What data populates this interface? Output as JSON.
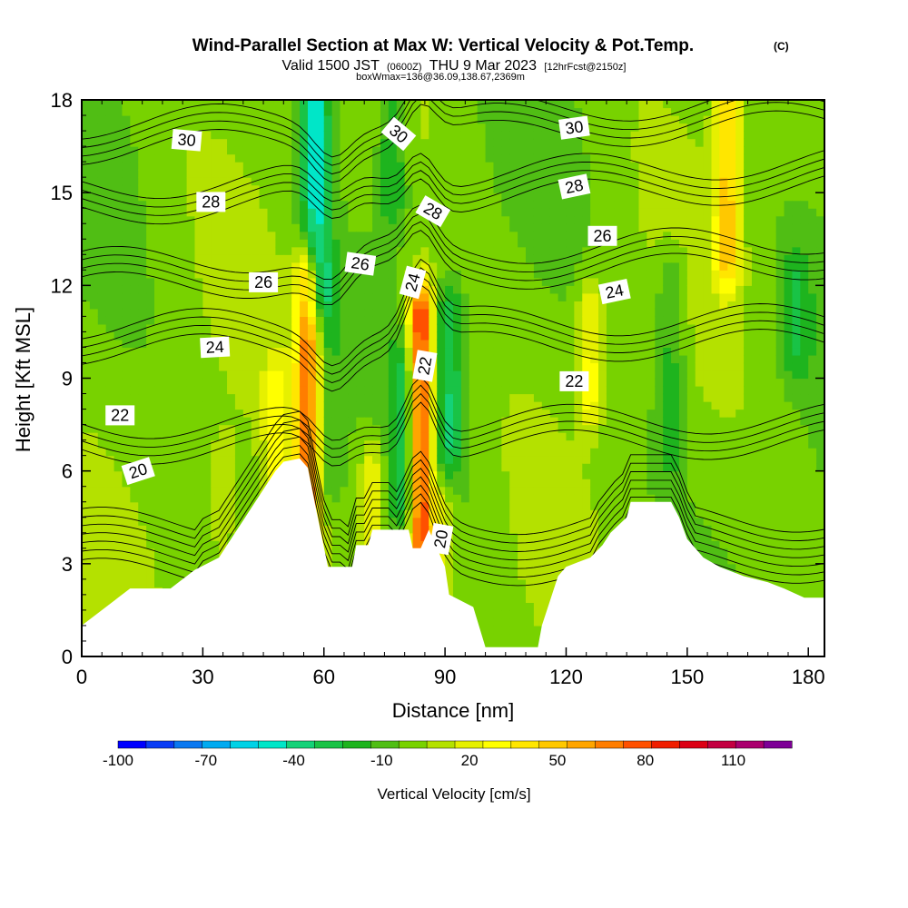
{
  "title": {
    "main": "Wind-Parallel Section at Max W: Vertical Velocity & Pot.Temp.",
    "copyright": "(C)",
    "valid_prefix": "Valid 1500 JST",
    "valid_utc": "(0600Z)",
    "valid_date": "THU 9 Mar 2023",
    "forecast": "[12hrFcst@2150z]",
    "box_info": "boxWmax=136@36.09,138.67,2369m"
  },
  "chart_data": {
    "type": "heatmap",
    "xlabel": "Distance [nm]",
    "ylabel": "Height [Kft MSL]",
    "xlim": [
      0,
      184
    ],
    "ylim": [
      0,
      18
    ],
    "x_ticks": [
      0,
      30,
      60,
      90,
      120,
      150,
      180
    ],
    "y_ticks": [
      0,
      3,
      6,
      9,
      12,
      15,
      18
    ],
    "colorbar": {
      "label": "Vertical Velocity [cm/s]",
      "tick_labels": [
        "-100",
        "-70",
        "-40",
        "-10",
        "20",
        "50",
        "80",
        "110"
      ],
      "tick_values": [
        -100,
        -70,
        -40,
        -10,
        20,
        50,
        80,
        110
      ],
      "range": [
        -100,
        130
      ],
      "colors": [
        "#0000ff",
        "#0a3cf5",
        "#0a78f0",
        "#00aaf0",
        "#00d2e6",
        "#00e6c8",
        "#14d278",
        "#19c346",
        "#1eb41e",
        "#50be14",
        "#78d200",
        "#b4e100",
        "#e6f000",
        "#ffff00",
        "#ffe600",
        "#ffc800",
        "#ffa500",
        "#ff7d00",
        "#ff5000",
        "#f01e00",
        "#dc0014",
        "#c30041",
        "#aa006e",
        "#7d0096"
      ]
    },
    "background_w_cms": 0,
    "updrafts": [
      {
        "x": 56,
        "y0": 3,
        "y1": 12,
        "w": 70
      },
      {
        "x": 84,
        "y0": 4,
        "y1": 11,
        "w": 90
      },
      {
        "x": 48,
        "y0": 6,
        "y1": 8.5,
        "w": 25
      },
      {
        "x": 72,
        "y0": 4,
        "y1": 6,
        "w": 25
      },
      {
        "x": 89,
        "y0": 2.5,
        "y1": 4.5,
        "w": 25
      },
      {
        "x": 126,
        "y0": 8.5,
        "y1": 11,
        "w": 30
      },
      {
        "x": 160,
        "y0": 13,
        "y1": 18,
        "w": 45
      },
      {
        "x": 35,
        "y0": 2,
        "y1": 6,
        "w": 15
      }
    ],
    "downdrafts": [
      {
        "x": 58,
        "y0": 12,
        "y1": 18,
        "w": -45
      },
      {
        "x": 61,
        "y0": 6,
        "y1": 12,
        "w": -15
      },
      {
        "x": 80,
        "y0": 5,
        "y1": 9,
        "w": -25
      },
      {
        "x": 91,
        "y0": 7,
        "y1": 11,
        "w": -30
      },
      {
        "x": 146,
        "y0": 7,
        "y1": 12,
        "w": -20
      },
      {
        "x": 177,
        "y0": 10,
        "y1": 12,
        "w": -20
      },
      {
        "x": 77,
        "y0": 15,
        "y1": 18,
        "w": -25
      }
    ],
    "terrain_kft": [
      [
        0,
        1.0
      ],
      [
        3,
        1.3
      ],
      [
        6,
        1.6
      ],
      [
        9,
        1.9
      ],
      [
        12,
        2.2
      ],
      [
        22,
        2.2
      ],
      [
        25,
        2.5
      ],
      [
        28,
        2.8
      ],
      [
        34,
        3.2
      ],
      [
        36,
        3.6
      ],
      [
        38,
        4.0
      ],
      [
        40,
        4.4
      ],
      [
        42,
        4.8
      ],
      [
        44,
        5.2
      ],
      [
        46,
        5.6
      ],
      [
        48,
        6.0
      ],
      [
        50,
        6.3
      ],
      [
        54,
        6.4
      ],
      [
        56,
        6.1
      ],
      [
        58,
        4.8
      ],
      [
        61,
        2.9
      ],
      [
        67,
        2.9
      ],
      [
        68,
        3.6
      ],
      [
        71,
        3.6
      ],
      [
        72,
        4.1
      ],
      [
        81,
        4.1
      ],
      [
        82,
        3.5
      ],
      [
        84,
        3.5
      ],
      [
        86,
        4.1
      ],
      [
        88,
        3.5
      ],
      [
        90,
        2.9
      ],
      [
        91,
        2.0
      ],
      [
        97,
        1.6
      ],
      [
        100,
        0.3
      ],
      [
        113,
        0.3
      ],
      [
        114,
        1.0
      ],
      [
        116,
        1.8
      ],
      [
        118,
        2.6
      ],
      [
        120,
        2.9
      ],
      [
        126,
        3.2
      ],
      [
        129,
        3.6
      ],
      [
        131,
        4.0
      ],
      [
        135,
        4.5
      ],
      [
        136,
        5.0
      ],
      [
        146,
        5.0
      ],
      [
        148,
        4.5
      ],
      [
        150,
        3.8
      ],
      [
        154,
        3.2
      ],
      [
        158,
        2.9
      ],
      [
        164,
        2.6
      ],
      [
        170,
        2.4
      ],
      [
        174,
        2.2
      ],
      [
        179,
        1.9
      ],
      [
        184,
        1.9
      ]
    ],
    "isentropes": [
      {
        "level": 20,
        "label": "20"
      },
      {
        "level": 22,
        "label": "22"
      },
      {
        "level": 24,
        "label": "24"
      },
      {
        "level": 26,
        "label": "26"
      },
      {
        "level": 28,
        "label": "28"
      },
      {
        "level": 30,
        "label": "30"
      }
    ],
    "isentrope_labels": [
      {
        "text": "30",
        "x": 26,
        "y": 16.7,
        "angle": 5
      },
      {
        "text": "30",
        "x": 78.5,
        "y": 16.9,
        "angle": 40
      },
      {
        "text": "30",
        "x": 122,
        "y": 17.1,
        "angle": -8
      },
      {
        "text": "28",
        "x": 32,
        "y": 14.7,
        "angle": 0
      },
      {
        "text": "28",
        "x": 87,
        "y": 14.4,
        "angle": 30
      },
      {
        "text": "28",
        "x": 122,
        "y": 15.2,
        "angle": -12
      },
      {
        "text": "26",
        "x": 45,
        "y": 12.1,
        "angle": 0
      },
      {
        "text": "26",
        "x": 69,
        "y": 12.7,
        "angle": 8
      },
      {
        "text": "26",
        "x": 129,
        "y": 13.6,
        "angle": 0
      },
      {
        "text": "24",
        "x": 33,
        "y": 10.0,
        "angle": -3
      },
      {
        "text": "24",
        "x": 82,
        "y": 12.1,
        "angle": -75
      },
      {
        "text": "24",
        "x": 132,
        "y": 11.8,
        "angle": -12
      },
      {
        "text": "22",
        "x": 9.5,
        "y": 7.8,
        "angle": 0
      },
      {
        "text": "22",
        "x": 85,
        "y": 9.4,
        "angle": -80
      },
      {
        "text": "22",
        "x": 122,
        "y": 8.9,
        "angle": 0
      },
      {
        "text": "20",
        "x": 14,
        "y": 6.0,
        "angle": -18
      },
      {
        "text": "20",
        "x": 89,
        "y": 3.8,
        "angle": -80
      }
    ]
  },
  "colors": {
    "terrain": "#ffffff",
    "contour": "#000000",
    "label_box": "#ffffff"
  }
}
